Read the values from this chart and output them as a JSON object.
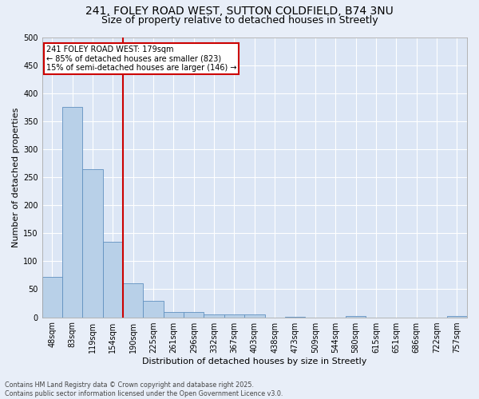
{
  "title1": "241, FOLEY ROAD WEST, SUTTON COLDFIELD, B74 3NU",
  "title2": "Size of property relative to detached houses in Streetly",
  "xlabel": "Distribution of detached houses by size in Streetly",
  "ylabel": "Number of detached properties",
  "footnote": "Contains HM Land Registry data © Crown copyright and database right 2025.\nContains public sector information licensed under the Open Government Licence v3.0.",
  "bar_labels": [
    "48sqm",
    "83sqm",
    "119sqm",
    "154sqm",
    "190sqm",
    "225sqm",
    "261sqm",
    "296sqm",
    "332sqm",
    "367sqm",
    "403sqm",
    "438sqm",
    "473sqm",
    "509sqm",
    "544sqm",
    "580sqm",
    "615sqm",
    "651sqm",
    "686sqm",
    "722sqm",
    "757sqm"
  ],
  "bar_values": [
    72,
    375,
    265,
    135,
    60,
    30,
    10,
    10,
    5,
    5,
    5,
    0,
    1,
    0,
    0,
    2,
    0,
    0,
    0,
    0,
    2
  ],
  "bar_color": "#b8d0e8",
  "bar_edge_color": "#6090c0",
  "vline_index": 3.5,
  "vline_color": "#cc0000",
  "annotation_text": "241 FOLEY ROAD WEST: 179sqm\n← 85% of detached houses are smaller (823)\n15% of semi-detached houses are larger (146) →",
  "annotation_box_color": "#ffffff",
  "annotation_box_edge": "#cc0000",
  "ylim": [
    0,
    500
  ],
  "yticks": [
    0,
    50,
    100,
    150,
    200,
    250,
    300,
    350,
    400,
    450,
    500
  ],
  "bg_color": "#e8eef8",
  "plot_bg_color": "#dce6f5",
  "grid_color": "#ffffff",
  "title_fontsize": 10,
  "subtitle_fontsize": 9,
  "tick_fontsize": 7,
  "ylabel_fontsize": 8,
  "xlabel_fontsize": 8,
  "footnote_fontsize": 5.8
}
